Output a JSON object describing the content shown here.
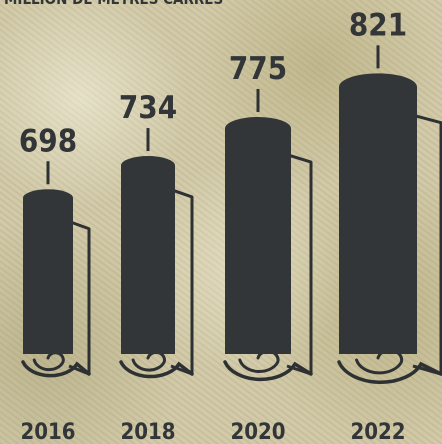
{
  "chart_data": {
    "type": "bar",
    "unit_label": "MILLION DE MÈTRES CARRÉS",
    "categories": [
      "2016",
      "2018",
      "2020",
      "2022"
    ],
    "values": [
      698,
      734,
      775,
      821
    ],
    "colors": {
      "bar": "#333638",
      "outline": "#2e3133",
      "text": "#333638"
    }
  }
}
